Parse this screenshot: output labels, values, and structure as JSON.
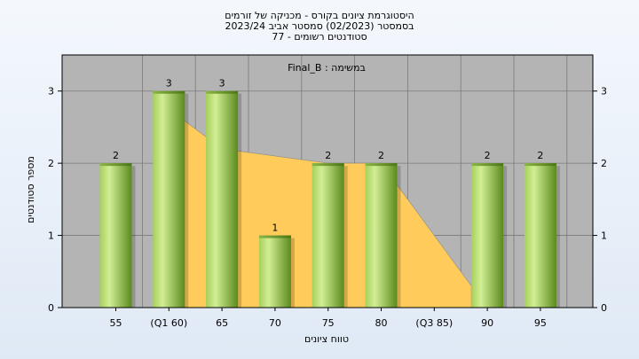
{
  "title_lines": [
    "היסטוגרמת ציונים בקורס - מכניקה של זורמים",
    "בסמסטר  (02/2023)  סמסטר אביב 2023/24",
    "סטודנטים רשומים - 77"
  ],
  "chart_data": {
    "type": "bar",
    "annotation": "Final_B : במשימה",
    "xlabel": "טווח ציונים",
    "ylabel": "מספר סטודנטים",
    "ylim": [
      0,
      3.5
    ],
    "yticks": [
      0,
      1,
      2,
      3
    ],
    "categories": [
      "55",
      "(Q1 60)",
      "65",
      "70",
      "75",
      "80",
      "(Q3 85)",
      "90",
      "95"
    ],
    "values": [
      2,
      3,
      3,
      1,
      2,
      2,
      0,
      2,
      2
    ],
    "value_labels": [
      "2",
      "3",
      "3",
      "1",
      "2",
      "2",
      "",
      "2",
      "2"
    ],
    "quartile_area": {
      "x_points": [
        "(Q1 60)",
        "65",
        "75",
        "80",
        "(Q3 85)",
        "90"
      ],
      "y_points": [
        2.75,
        2.2,
        2,
        2,
        1,
        0.3
      ]
    },
    "grid": true,
    "colors": {
      "plot_bg": "#b4b4b4",
      "bar_light": "#cdea8c",
      "bar_dark": "#5d8a1e",
      "area": "#ffcc5c",
      "grid": "#7a7a7a"
    }
  }
}
